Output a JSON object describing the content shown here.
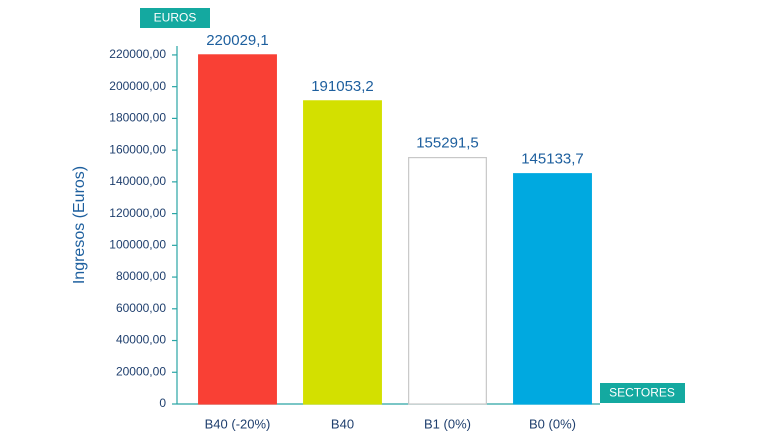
{
  "chart_data": {
    "type": "bar",
    "ylabel": "Ingresos (Euros)",
    "y_unit_label": "EUROS",
    "x_unit_label": "SECTORES",
    "categories": [
      "B40 (-20%)",
      "B40",
      "B1 (0%)",
      "B0 (0%)"
    ],
    "values": [
      220029.1,
      191053.2,
      155291.5,
      145133.7
    ],
    "value_labels": [
      "220029,1",
      "191053,2",
      "155291,5",
      "145133,7"
    ],
    "colors": [
      "#f94035",
      "#d3e000",
      "#ffffff",
      "#00a9e0"
    ],
    "edge_colors": [
      "#f94035",
      "#d3e000",
      "#c8c8c8",
      "#00a9e0"
    ],
    "ylim": [
      0,
      225000
    ],
    "yticks": [
      0,
      {
        "value": 20000,
        "label": "20000,00"
      },
      {
        "value": 40000,
        "label": "40000,00"
      },
      {
        "value": 60000,
        "label": "60000,00"
      },
      {
        "value": 80000,
        "label": "80000,00"
      },
      {
        "value": 100000,
        "label": "100000,00"
      },
      {
        "value": 120000,
        "label": "120000,00"
      },
      {
        "value": 140000,
        "label": "140000,00"
      },
      {
        "value": 160000,
        "label": "160000,00"
      },
      {
        "value": 180000,
        "label": "180000,00"
      },
      {
        "value": 200000,
        "label": "200000,00"
      },
      {
        "value": 220000,
        "label": "220000,00"
      }
    ],
    "grid": false
  }
}
